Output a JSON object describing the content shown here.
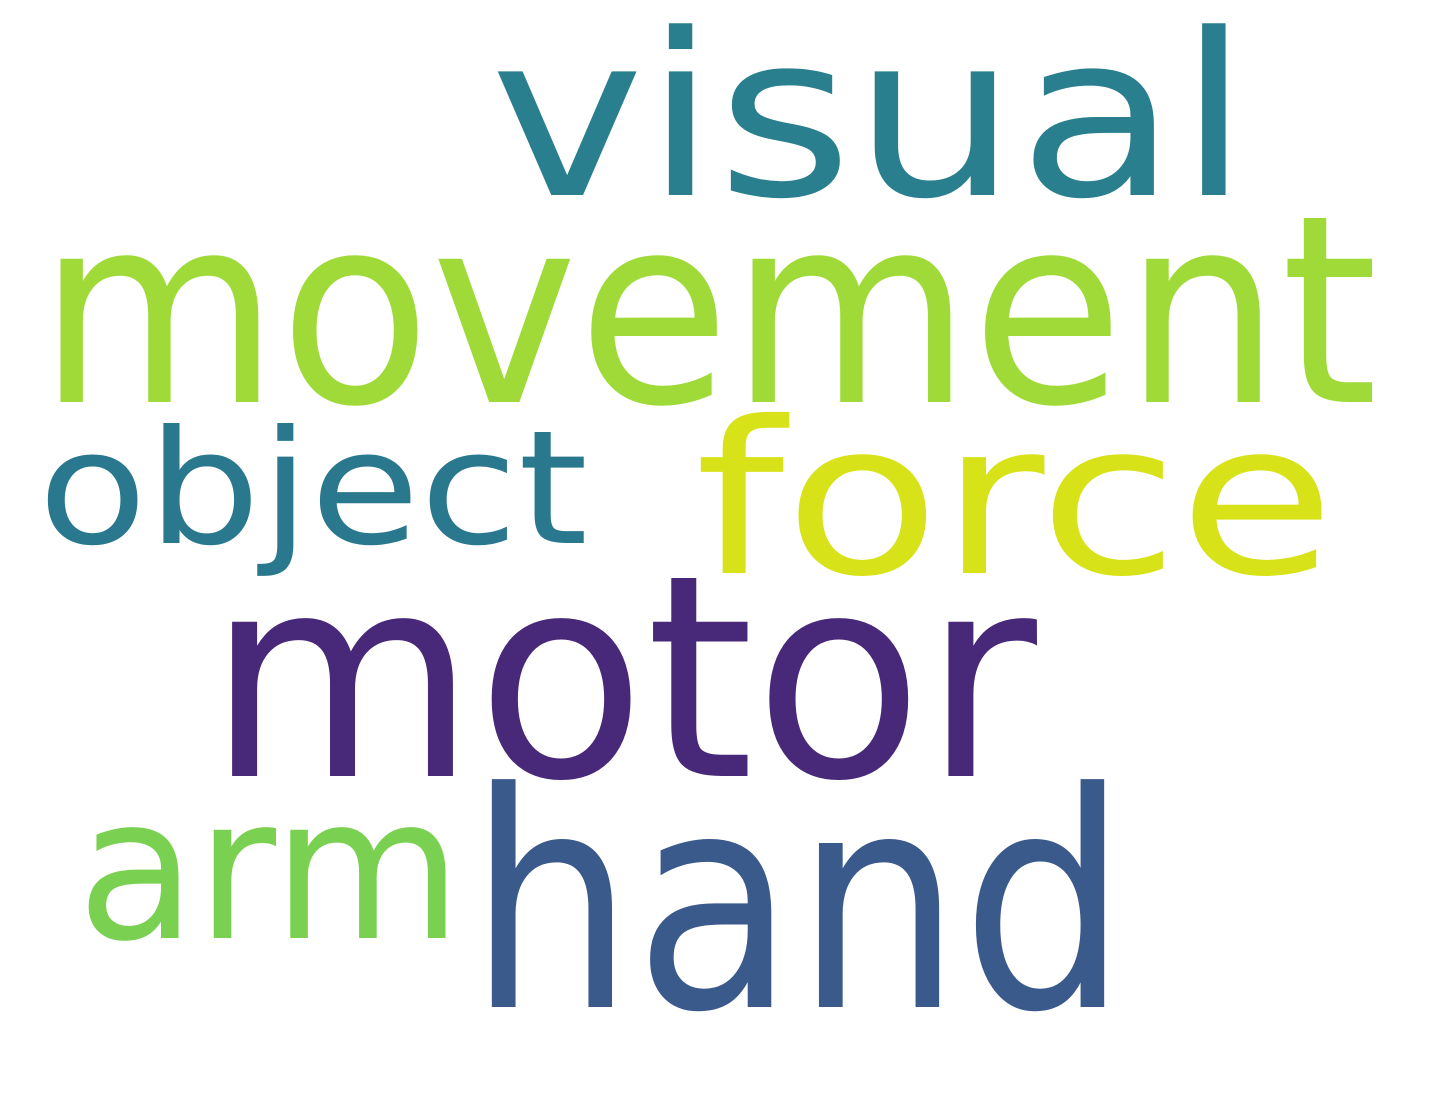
{
  "word_cloud": {
    "words": [
      {
        "text": "visual",
        "color": "#2a7f8e"
      },
      {
        "text": "movement",
        "color": "#a0da39"
      },
      {
        "text": "force",
        "color": "#d8e219"
      },
      {
        "text": "object",
        "color": "#2a788e"
      },
      {
        "text": "motor",
        "color": "#482878"
      },
      {
        "text": "arm",
        "color": "#7ad151"
      },
      {
        "text": "hand",
        "color": "#3b5a8c"
      }
    ]
  }
}
